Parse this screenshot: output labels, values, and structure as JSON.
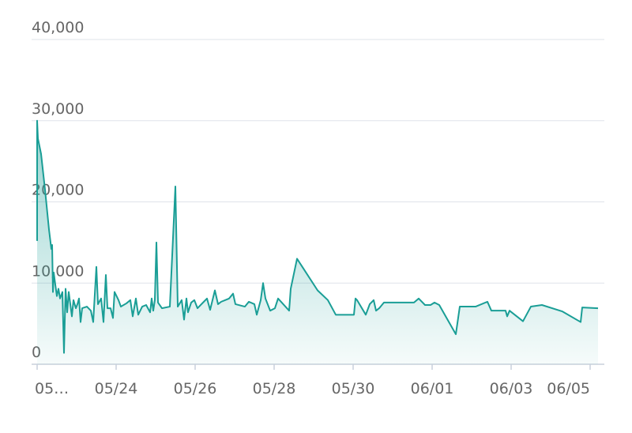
{
  "chart_data": {
    "type": "area",
    "x": [
      0,
      0,
      0.02,
      0.1,
      0.2,
      0.3,
      0.36,
      0.38,
      0.4,
      0.42,
      0.46,
      0.5,
      0.54,
      0.58,
      0.64,
      0.68,
      0.72,
      0.76,
      0.8,
      0.84,
      0.88,
      0.92,
      0.98,
      1.02,
      1.06,
      1.1,
      1.14,
      1.26,
      1.36,
      1.42,
      1.5,
      1.54,
      1.62,
      1.68,
      1.74,
      1.78,
      1.86,
      1.92,
      1.96,
      2.06,
      2.12,
      2.26,
      2.36,
      2.42,
      2.5,
      2.56,
      2.66,
      2.76,
      2.86,
      2.9,
      2.94,
      2.98,
      3.02,
      3.06,
      3.16,
      3.36,
      3.5,
      3.56,
      3.66,
      3.72,
      3.78,
      3.82,
      3.9,
      3.98,
      4.06,
      4.22,
      4.3,
      4.38,
      4.5,
      4.58,
      4.66,
      4.86,
      4.96,
      5.02,
      5.26,
      5.36,
      5.5,
      5.56,
      5.66,
      5.72,
      5.78,
      5.9,
      6.02,
      6.1,
      6.38,
      6.42,
      6.58,
      7.1,
      7.36,
      7.56,
      8.02,
      8.06,
      8.1,
      8.32,
      8.42,
      8.52,
      8.58,
      8.66,
      8.78,
      9.54,
      9.66,
      9.82,
      9.96,
      10.06,
      10.18,
      10.6,
      10.7,
      11.1,
      11.4,
      11.5,
      11.86,
      11.9,
      11.96,
      12.3,
      12.5,
      12.78,
      13.3,
      13.76,
      13.8,
      14.2
    ],
    "values": [
      15200,
      30000,
      27800,
      25900,
      21500,
      16600,
      14200,
      14700,
      8900,
      11300,
      9800,
      8400,
      9300,
      8100,
      8900,
      1400,
      9300,
      6400,
      8900,
      7400,
      5900,
      7900,
      6900,
      7400,
      8100,
      5200,
      6900,
      7100,
      6600,
      5200,
      12000,
      7400,
      8100,
      5200,
      11000,
      6900,
      6900,
      5700,
      8900,
      7900,
      7100,
      7500,
      7900,
      5900,
      8100,
      6100,
      7100,
      7300,
      6400,
      8100,
      6600,
      7900,
      15000,
      7600,
      6900,
      7100,
      21900,
      7100,
      7900,
      5500,
      8100,
      6400,
      7600,
      7900,
      6900,
      7700,
      8100,
      6700,
      9100,
      7400,
      7700,
      8100,
      8700,
      7400,
      7100,
      7700,
      7400,
      6100,
      7900,
      10000,
      8100,
      6600,
      6900,
      8100,
      6600,
      9300,
      13000,
      9100,
      7900,
      6100,
      6100,
      8100,
      7900,
      6100,
      7400,
      7900,
      6600,
      6900,
      7600,
      7600,
      8100,
      7300,
      7300,
      7600,
      7300,
      3700,
      7100,
      7100,
      7700,
      6600,
      6600,
      5900,
      6600,
      5300,
      7100,
      7300,
      6500,
      5200,
      7000,
      6900
    ],
    "color": "#1a9e96",
    "xlim": [
      0,
      14.2
    ],
    "xticks": [
      {
        "value": 0,
        "label": "05…"
      },
      {
        "value": 2,
        "label": "05/24"
      },
      {
        "value": 4,
        "label": "05/26"
      },
      {
        "value": 6,
        "label": "05/28"
      },
      {
        "value": 8,
        "label": "05/30"
      },
      {
        "value": 10,
        "label": "06/01"
      },
      {
        "value": 12,
        "label": "06/03"
      },
      {
        "value": 14,
        "label": "06/05"
      }
    ],
    "ylim": [
      0,
      40000
    ],
    "yticks": [
      0,
      {
        "value": 10000,
        "label": "10,000"
      },
      {
        "value": 20000,
        "label": "20,000"
      },
      {
        "value": 30000,
        "label": "30,000"
      },
      {
        "value": 40000,
        "label": "40,000"
      }
    ],
    "grid": true
  }
}
